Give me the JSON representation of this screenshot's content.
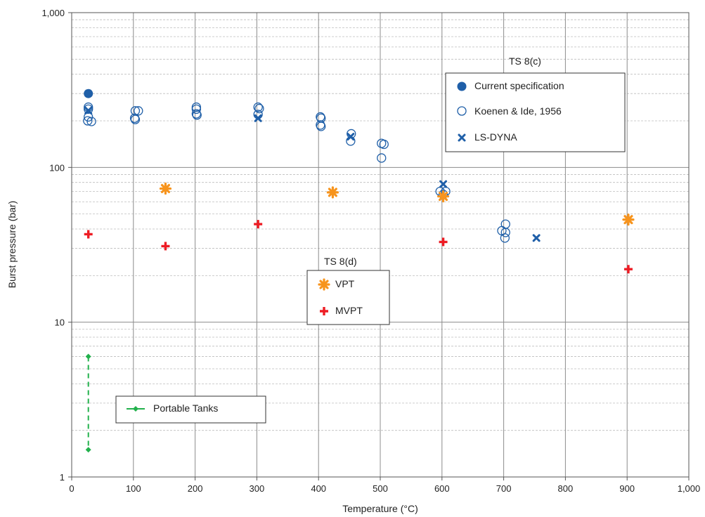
{
  "chart_data": {
    "type": "scatter",
    "xlabel": "Temperature (°C)",
    "ylabel": "Burst pressure  (bar)",
    "xlim": [
      0,
      1000
    ],
    "ylim": [
      1,
      1000
    ],
    "yscale": "log",
    "grid": true,
    "x_ticks": [
      0,
      100,
      200,
      300,
      400,
      500,
      600,
      700,
      800,
      900,
      1000
    ],
    "x_tick_labels": [
      "0",
      "100",
      "200",
      "300",
      "400",
      "500",
      "600",
      "700",
      "800",
      "900",
      "1,000"
    ],
    "y_ticks": [
      1,
      10,
      100,
      1000
    ],
    "y_tick_labels": [
      "1",
      "10",
      "100",
      "1,000"
    ],
    "colors": {
      "blue": "#1f5fa8",
      "orange": "#f7941d",
      "red": "#ee1c24",
      "green": "#22b14c",
      "grid_major": "#8c8c8c",
      "grid_minor": "#bdbdbd"
    },
    "legend_ts8c": {
      "title": "TS 8(c)",
      "entries": [
        "Current specification",
        "Koenen & Ide, 1956",
        "LS-DYNA"
      ]
    },
    "legend_ts8d": {
      "title": "TS 8(d)",
      "entries": [
        "VPT",
        "MVPT"
      ]
    },
    "legend_portable": {
      "entries": [
        "Portable Tanks"
      ]
    },
    "series": [
      {
        "name": "Current specification",
        "marker": "filled-circle",
        "color": "#1f5fa8",
        "points": [
          [
            27,
            300
          ]
        ]
      },
      {
        "name": "Koenen & Ide, 1956",
        "marker": "open-circle",
        "color": "#1f5fa8",
        "points": [
          [
            27,
            245
          ],
          [
            27,
            238
          ],
          [
            27,
            212
          ],
          [
            26,
            200
          ],
          [
            32,
            198
          ],
          [
            103,
            232
          ],
          [
            108,
            232
          ],
          [
            102,
            208
          ],
          [
            103,
            204
          ],
          [
            202,
            245
          ],
          [
            202,
            238
          ],
          [
            202,
            222
          ],
          [
            203,
            218
          ],
          [
            302,
            245
          ],
          [
            304,
            240
          ],
          [
            302,
            220
          ],
          [
            403,
            212
          ],
          [
            404,
            208
          ],
          [
            403,
            188
          ],
          [
            404,
            184
          ],
          [
            453,
            165
          ],
          [
            452,
            148
          ],
          [
            502,
            143
          ],
          [
            506,
            141
          ],
          [
            502,
            115
          ],
          [
            597,
            70
          ],
          [
            606,
            70
          ],
          [
            602,
            67
          ],
          [
            697,
            39
          ],
          [
            703,
            43
          ],
          [
            703,
            38
          ],
          [
            702,
            35
          ]
        ]
      },
      {
        "name": "LS-DYNA",
        "marker": "x",
        "color": "#1f5fa8",
        "points": [
          [
            27,
            233
          ],
          [
            302,
            208
          ],
          [
            452,
            158
          ],
          [
            602,
            78
          ],
          [
            753,
            35
          ]
        ]
      },
      {
        "name": "VPT",
        "marker": "asterisk",
        "color": "#f7941d",
        "points": [
          [
            152,
            73
          ],
          [
            423,
            69
          ],
          [
            602,
            65
          ],
          [
            902,
            46
          ]
        ]
      },
      {
        "name": "MVPT",
        "marker": "plus",
        "color": "#ee1c24",
        "points": [
          [
            27,
            37
          ],
          [
            152,
            31
          ],
          [
            302,
            43
          ],
          [
            602,
            33
          ],
          [
            902,
            22
          ]
        ]
      },
      {
        "name": "Portable Tanks",
        "marker": "diamond-dashed-line",
        "color": "#22b14c",
        "points": [
          [
            27,
            6
          ],
          [
            27,
            1.5
          ]
        ]
      }
    ]
  }
}
